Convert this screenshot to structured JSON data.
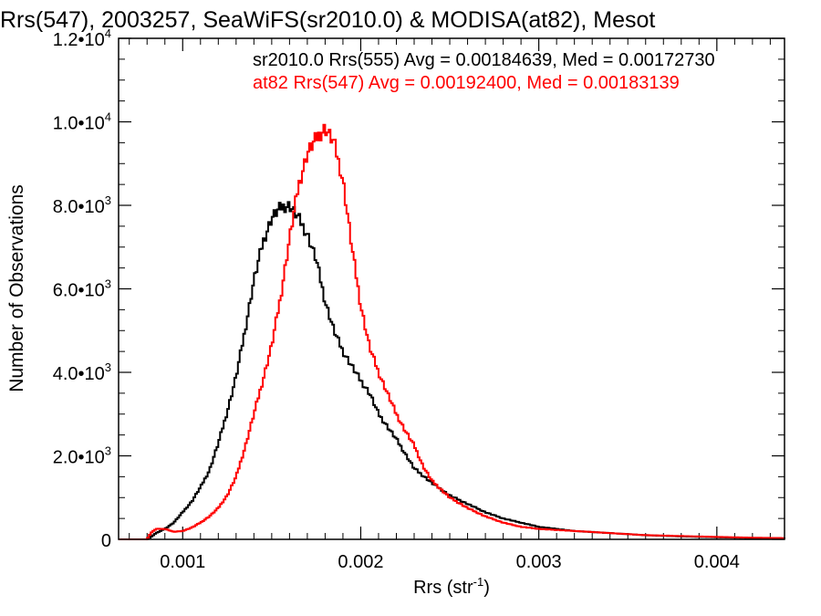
{
  "chart_data": {
    "type": "line",
    "title": "Rrs(547), 2003257, SeaWiFS(sr2010.0) & MODISA(at82), Mesot",
    "xlabel": "Rrs (str",
    "xlabel_sup": "-1",
    "xlabel_end": ")",
    "ylabel": "Number of Observations",
    "xlim": [
      0.00064,
      0.00438
    ],
    "ylim": [
      0,
      12000
    ],
    "x_ticks": [
      {
        "value": 0.001,
        "label": "0.001"
      },
      {
        "value": 0.002,
        "label": "0.002"
      },
      {
        "value": 0.003,
        "label": "0.003"
      },
      {
        "value": 0.004,
        "label": "0.004"
      }
    ],
    "y_ticks": [
      {
        "value": 0,
        "mant": "0",
        "exp": ""
      },
      {
        "value": 2000,
        "mant": "2.0•10",
        "exp": "3"
      },
      {
        "value": 4000,
        "mant": "4.0•10",
        "exp": "3"
      },
      {
        "value": 6000,
        "mant": "6.0•10",
        "exp": "3"
      },
      {
        "value": 8000,
        "mant": "8.0•10",
        "exp": "3"
      },
      {
        "value": 10000,
        "mant": "1.0•10",
        "exp": "4"
      },
      {
        "value": 12000,
        "mant": "1.2•10",
        "exp": "4"
      }
    ],
    "grid": false,
    "legend_position": "top-right",
    "series": [
      {
        "name": "sr2010.0 Rrs(555) Avg = 0.00184639, Med = 0.00172730",
        "color": "#000000",
        "x": [
          0.0008,
          0.00082,
          0.00085,
          0.0009,
          0.00095,
          0.001,
          0.00105,
          0.0011,
          0.00115,
          0.0012,
          0.00125,
          0.0013,
          0.00135,
          0.0014,
          0.00145,
          0.0015,
          0.00155,
          0.0016,
          0.00165,
          0.0017,
          0.00175,
          0.0018,
          0.00185,
          0.0019,
          0.00195,
          0.002,
          0.00205,
          0.0021,
          0.00215,
          0.0022,
          0.00225,
          0.0023,
          0.0024,
          0.0025,
          0.0026,
          0.0027,
          0.0028,
          0.0029,
          0.003,
          0.0032,
          0.0034,
          0.0036,
          0.0038,
          0.004,
          0.0042,
          0.00438
        ],
        "y": [
          0,
          50,
          150,
          250,
          400,
          650,
          900,
          1250,
          1650,
          2300,
          3050,
          3900,
          5000,
          6200,
          7100,
          7700,
          7950,
          8000,
          7700,
          7300,
          6700,
          5700,
          5000,
          4500,
          4150,
          3800,
          3500,
          3000,
          2700,
          2400,
          2050,
          1700,
          1350,
          1050,
          850,
          650,
          500,
          400,
          300,
          200,
          150,
          100,
          70,
          50,
          30,
          20
        ]
      },
      {
        "name": "at82 Rrs(547) Avg = 0.00192400, Med = 0.00183139",
        "color": "#ff0000",
        "x": [
          0.0008,
          0.00082,
          0.00085,
          0.0009,
          0.00095,
          0.001,
          0.00105,
          0.0011,
          0.00115,
          0.0012,
          0.00125,
          0.0013,
          0.00135,
          0.0014,
          0.00145,
          0.0015,
          0.00155,
          0.0016,
          0.00165,
          0.0017,
          0.00175,
          0.00178,
          0.0018,
          0.00185,
          0.0019,
          0.00195,
          0.002,
          0.00205,
          0.0021,
          0.00215,
          0.0022,
          0.00225,
          0.0023,
          0.00235,
          0.0024,
          0.0025,
          0.0026,
          0.0027,
          0.0028,
          0.0029,
          0.003,
          0.0032,
          0.0034,
          0.0036,
          0.0038,
          0.004,
          0.0042,
          0.00438
        ],
        "y": [
          0,
          150,
          250,
          250,
          180,
          200,
          280,
          400,
          550,
          750,
          1050,
          1500,
          2200,
          3000,
          3800,
          4650,
          5800,
          7200,
          8450,
          9250,
          9600,
          9750,
          9850,
          9500,
          8600,
          7000,
          5600,
          4600,
          4000,
          3500,
          3000,
          2600,
          2250,
          1750,
          1400,
          1000,
          750,
          550,
          400,
          300,
          250,
          200,
          150,
          100,
          80,
          60,
          40,
          30
        ]
      }
    ]
  }
}
